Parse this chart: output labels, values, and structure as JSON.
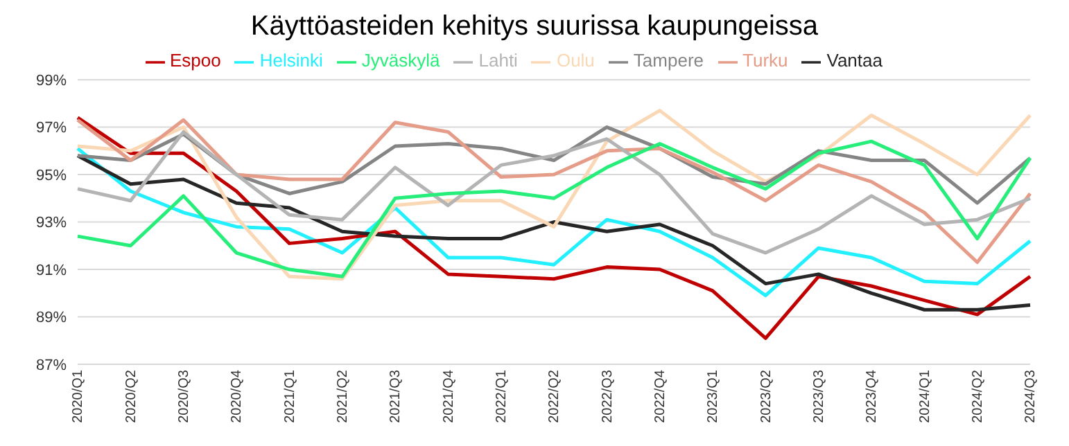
{
  "chart_data": {
    "type": "line",
    "title": "Käyttöasteiden kehitys suurissa kaupungeissa",
    "categories": [
      "2020/Q1",
      "2020/Q2",
      "2020/Q3",
      "2020/Q4",
      "2021/Q1",
      "2021/Q2",
      "2021/Q3",
      "2021/Q4",
      "2022/Q1",
      "2022/Q2",
      "2022/Q3",
      "2022/Q4",
      "2023/Q1",
      "2023/Q2",
      "2023/Q3",
      "2023/Q4",
      "2024/Q1",
      "2024/Q2",
      "2024/Q3"
    ],
    "series": [
      {
        "name": "Helsinki",
        "color": "#22f0ff",
        "values": [
          96.1,
          94.3,
          93.4,
          92.8,
          92.7,
          91.7,
          93.6,
          91.5,
          91.5,
          91.2,
          93.1,
          92.6,
          91.5,
          89.9,
          91.9,
          91.5,
          90.5,
          90.4,
          92.2
        ]
      },
      {
        "name": "Espoo",
        "color": "#c00000",
        "values": [
          97.4,
          95.9,
          95.9,
          94.3,
          92.1,
          92.3,
          92.6,
          90.8,
          90.7,
          90.6,
          91.1,
          91.0,
          90.1,
          88.1,
          90.7,
          90.3,
          89.7,
          89.1,
          90.7
        ]
      },
      {
        "name": "Vantaa",
        "color": "#262626",
        "values": [
          95.8,
          94.6,
          94.8,
          93.8,
          93.6,
          92.6,
          92.4,
          92.3,
          92.3,
          93.0,
          92.6,
          92.9,
          92.0,
          90.4,
          90.8,
          90.0,
          89.3,
          89.3,
          89.5
        ]
      },
      {
        "name": "Oulu",
        "color": "#fad8b5",
        "values": [
          96.2,
          96.0,
          97.0,
          93.2,
          90.7,
          90.6,
          93.7,
          93.9,
          93.9,
          92.8,
          96.4,
          97.7,
          96.0,
          94.7,
          95.8,
          97.5,
          96.3,
          95.0,
          97.5
        ]
      },
      {
        "name": "Tampere",
        "color": "#858585",
        "values": [
          95.8,
          95.6,
          96.7,
          95.0,
          94.2,
          94.7,
          96.2,
          96.3,
          96.1,
          95.6,
          97.0,
          96.1,
          94.9,
          94.6,
          96.0,
          95.6,
          95.6,
          93.8,
          95.7
        ]
      },
      {
        "name": "Turku",
        "color": "#e59c88",
        "values": [
          97.3,
          95.6,
          97.3,
          95.0,
          94.8,
          94.8,
          97.2,
          96.8,
          94.9,
          95.0,
          96.0,
          96.1,
          95.1,
          93.9,
          95.4,
          94.7,
          93.4,
          91.3,
          94.2
        ]
      },
      {
        "name": "Lahti",
        "color": "#b4b4b4",
        "values": [
          94.4,
          93.9,
          96.8,
          95.0,
          93.3,
          93.1,
          95.3,
          93.7,
          95.4,
          95.8,
          96.5,
          95.0,
          92.5,
          91.7,
          92.7,
          94.1,
          92.9,
          93.1,
          94.0
        ]
      },
      {
        "name": "Jyväskylä",
        "color": "#27ee7a",
        "values": [
          92.4,
          92.0,
          94.1,
          91.7,
          91.0,
          90.7,
          94.0,
          94.2,
          94.3,
          94.0,
          95.3,
          96.3,
          95.3,
          94.4,
          95.9,
          96.4,
          95.4,
          92.3,
          95.7
        ]
      }
    ],
    "ylim": [
      87,
      99
    ],
    "yticks": [
      {
        "value": 87,
        "label": "87%"
      },
      {
        "value": 89,
        "label": "89%"
      },
      {
        "value": 91,
        "label": "91%"
      },
      {
        "value": 93,
        "label": "93%"
      },
      {
        "value": 95,
        "label": "95%"
      },
      {
        "value": 97,
        "label": "97%"
      },
      {
        "value": 99,
        "label": "99%"
      }
    ],
    "grid": "y",
    "legend": "top",
    "marker": "none",
    "line_style": "solid"
  }
}
